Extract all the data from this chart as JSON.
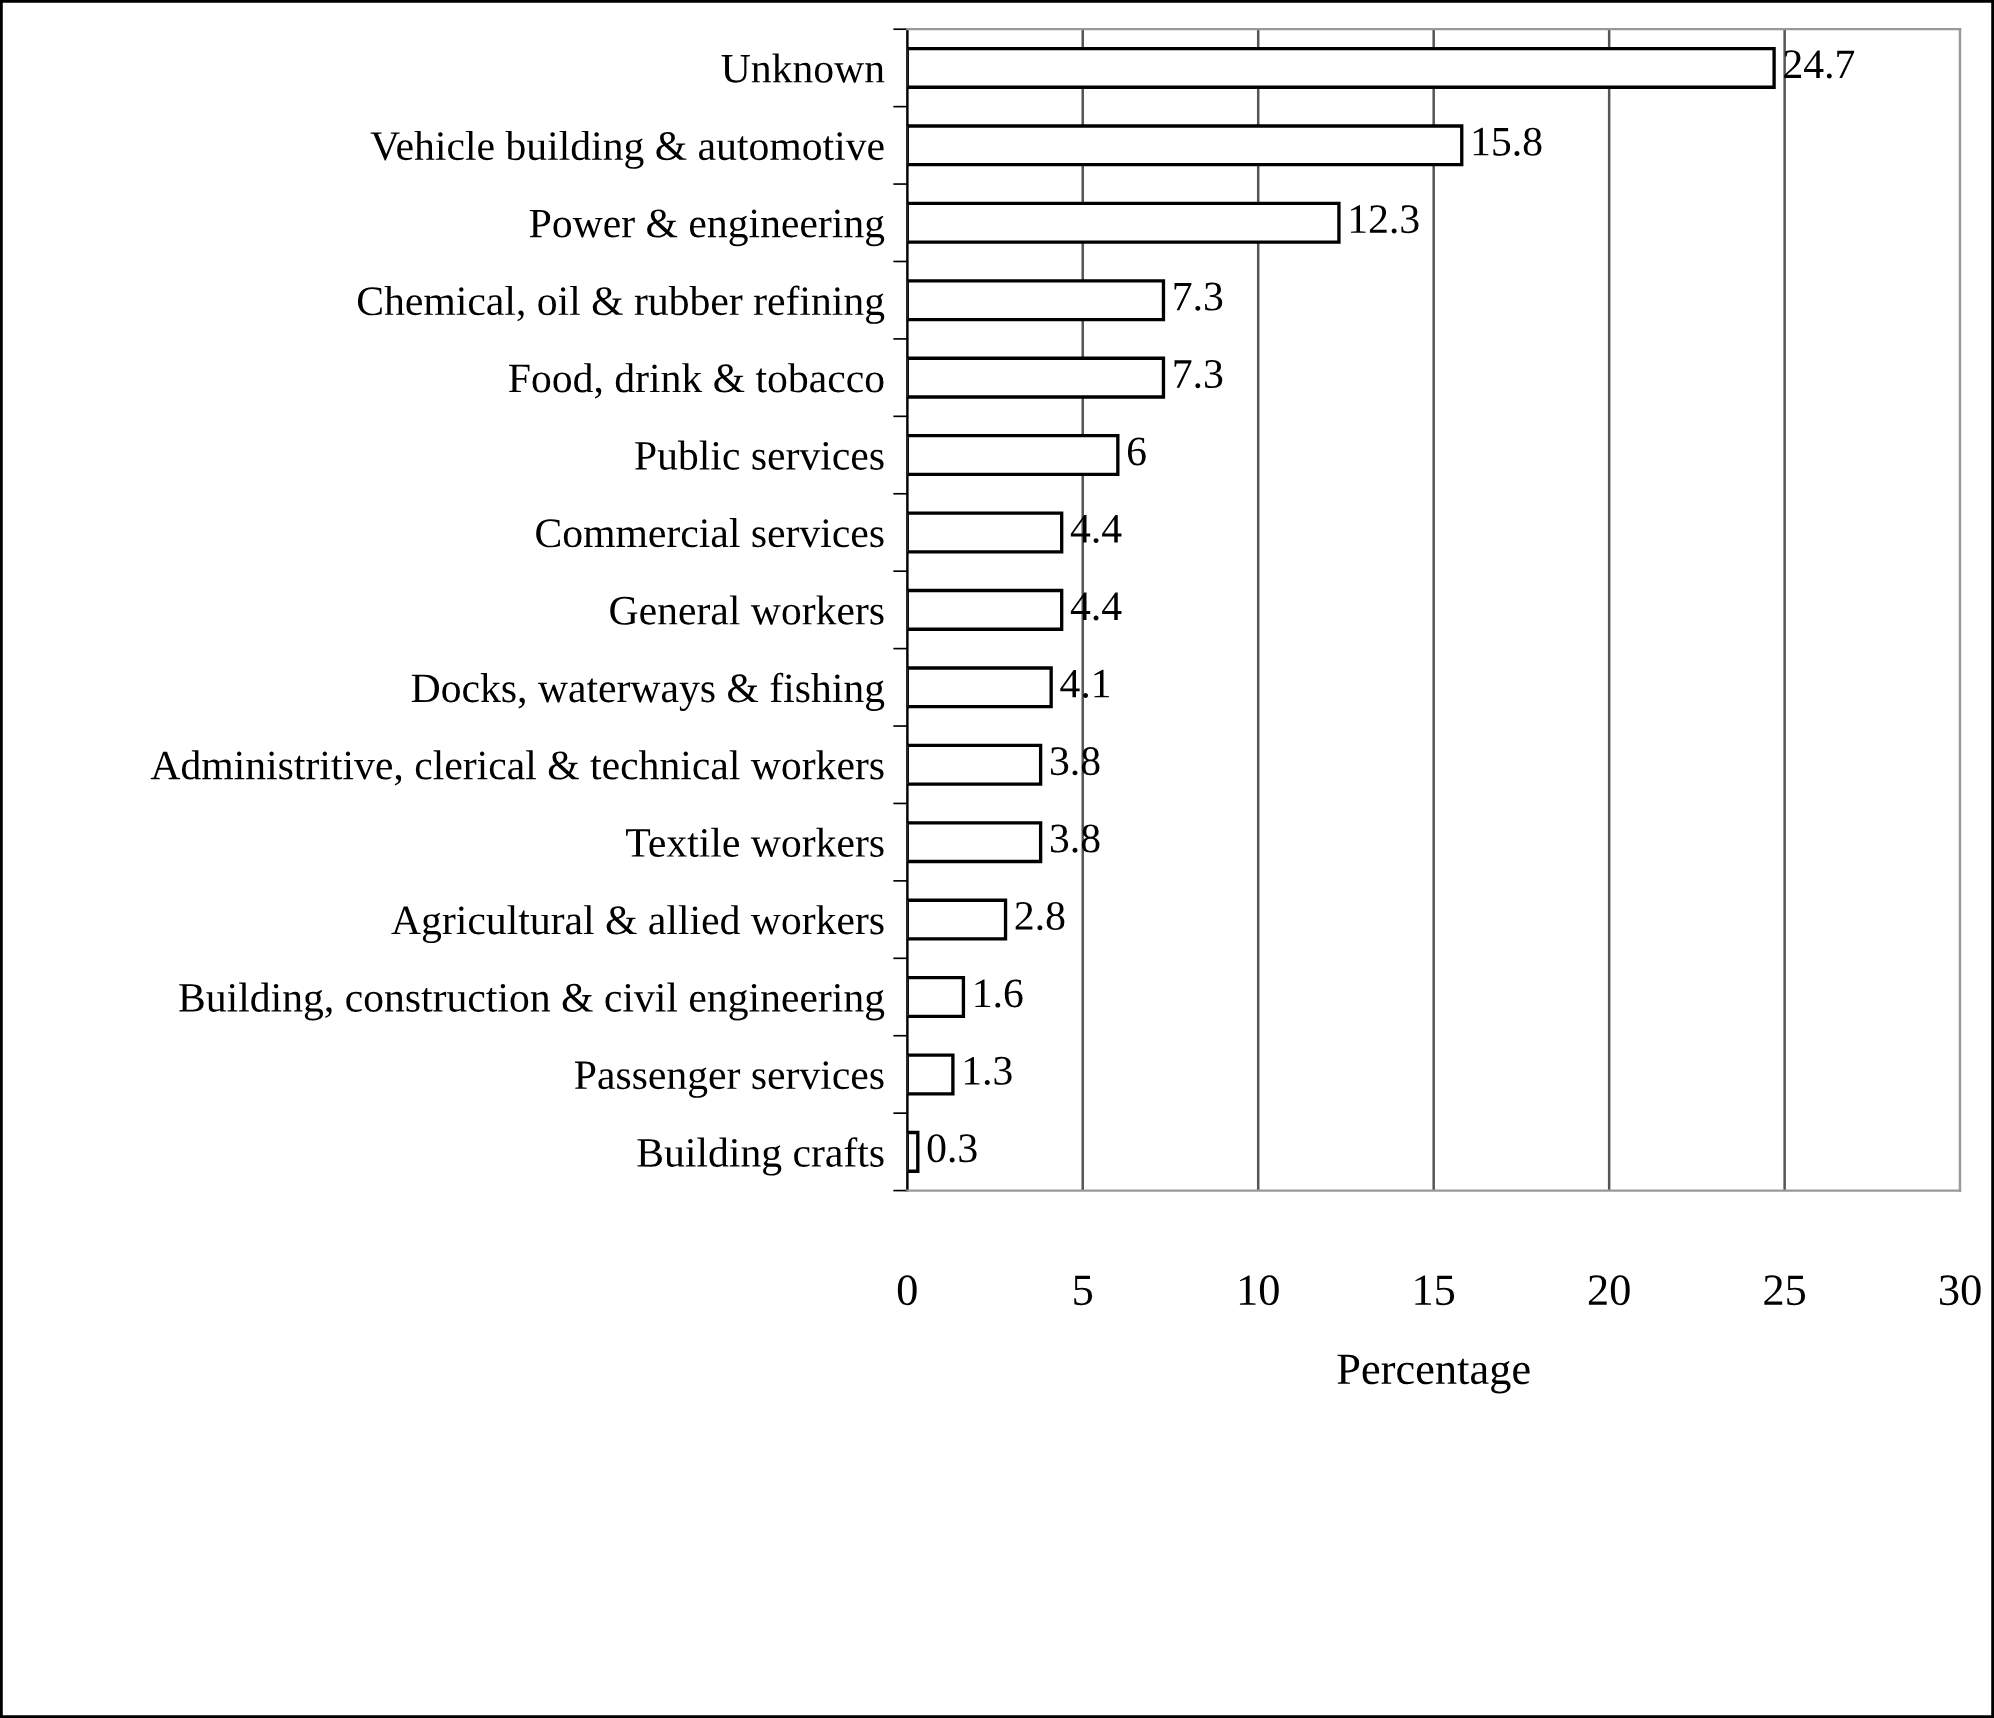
{
  "chart_data": {
    "type": "bar",
    "orientation": "horizontal",
    "xlabel": "Percentage",
    "categories": [
      "Unknown",
      "Vehicle building & automotive",
      "Power & engineering",
      "Chemical, oil & rubber refining",
      "Food, drink & tobacco",
      "Public services",
      "Commercial services",
      "General workers",
      "Docks, waterways & fishing",
      "Administritive, clerical & technical workers",
      "Textile workers",
      "Agricultural & allied workers",
      "Building, construction & civil engineering",
      "Passenger services",
      "Building crafts"
    ],
    "values": [
      24.7,
      15.8,
      12.3,
      7.3,
      7.3,
      6,
      4.4,
      4.4,
      4.1,
      3.8,
      3.8,
      2.8,
      1.6,
      1.3,
      0.3
    ],
    "color": "#ffffff",
    "xlim": [
      0,
      30
    ],
    "xticks": [
      0,
      5,
      10,
      15,
      20,
      25,
      30
    ],
    "grid": "x",
    "data_labels": true,
    "legend": false
  }
}
